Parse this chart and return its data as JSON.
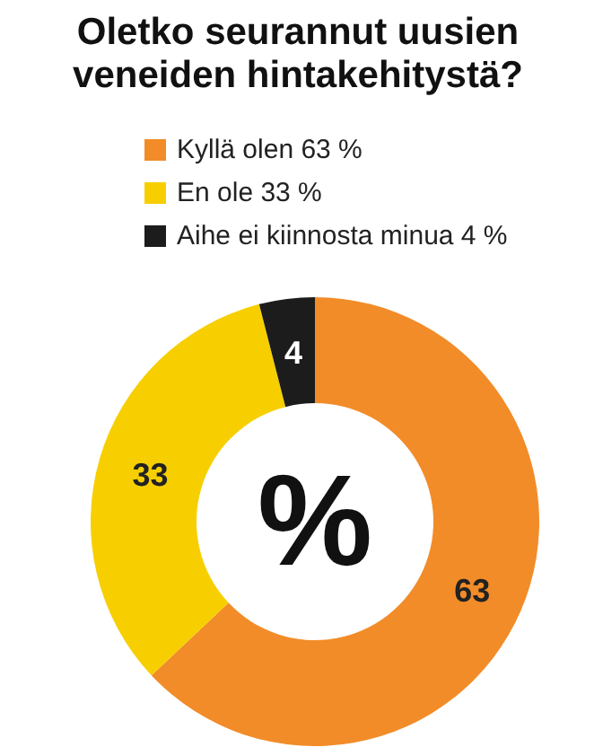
{
  "chart_data": {
    "type": "donut",
    "title": "Oletko seurannut uusien\nveneiden hintakehitystä?",
    "categories": [
      "Kyllä olen 63 %",
      "En ole 33 %",
      "Aihe ei kiinnosta minua 4 %"
    ],
    "values": [
      63,
      33,
      4
    ],
    "colors": [
      "#f28c28",
      "#f7cf00",
      "#1c1c1c"
    ],
    "data_labels": true,
    "legend": "top",
    "annotations": [
      "%"
    ]
  }
}
